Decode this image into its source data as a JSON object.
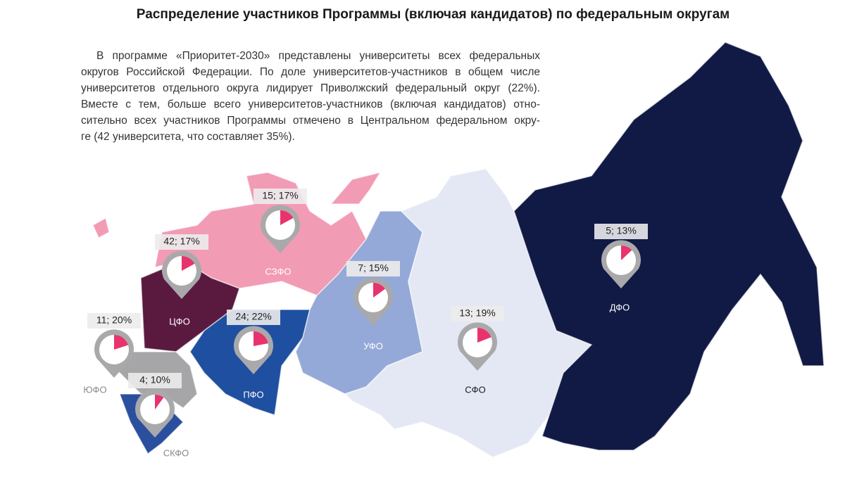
{
  "title": "Распределение участников Программы (включая кандидатов) по федеральным округам",
  "paragraph": [
    "В программе «Приоритет-2030» представлены университеты всех федеральных",
    "округов Российской Федерации. По доле университетов-участников в общем числе",
    "университетов отдельного округа лидирует Приволжский федеральный округ (22%).",
    "Вместе с тем, больше всего университетов-участников (включая кандидатов) отно-",
    "сительно всех участников Программы отмечено в Центральном федеральном окру-",
    "ге (42 университета, что составляет 35%)."
  ],
  "map": {
    "districts": [
      {
        "name": "СЗФО",
        "value_label": "15; 17%",
        "value": 17
      },
      {
        "name": "ЦФО",
        "value_label": "42; 17%",
        "value": 17
      },
      {
        "name": "ЮФО",
        "value_label": "11; 20%",
        "value": 20
      },
      {
        "name": "СКФО",
        "value_label": "4; 10%",
        "value": 10
      },
      {
        "name": "ПФО",
        "value_label": "24; 22%",
        "value": 22
      },
      {
        "name": "УФО",
        "value_label": "7; 15%",
        "value": 15
      },
      {
        "name": "СФО",
        "value_label": "13; 19%",
        "value": 19
      },
      {
        "name": "ДФО",
        "value_label": "5; 13%",
        "value": 13
      }
    ]
  }
}
